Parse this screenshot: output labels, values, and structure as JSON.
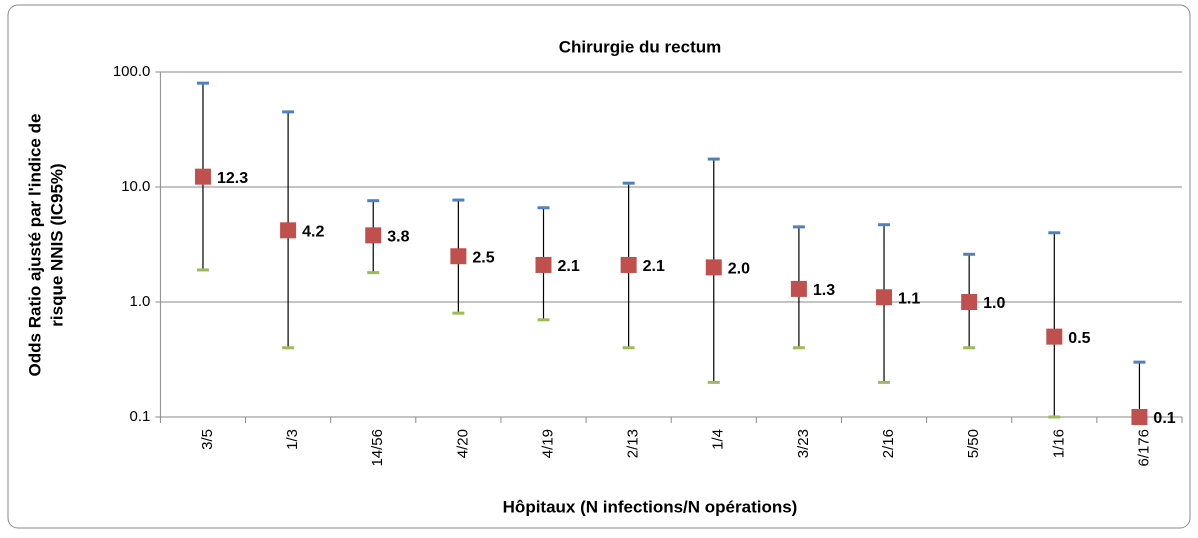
{
  "chart_data": {
    "type": "errorbar",
    "title": "Chirurgie du rectum",
    "x_label": "Hôpitaux (N infections/N opérations)",
    "y_label": [
      "Odds Ratio ajusté par l'indice de",
      "risque NNIS (IC95%)"
    ],
    "categories": [
      "3/5",
      "1/3",
      "14/56",
      "4/20",
      "4/19",
      "2/13",
      "1/4",
      "3/23",
      "2/16",
      "5/50",
      "1/16",
      "6/176"
    ],
    "values": [
      12.3,
      4.2,
      3.8,
      2.5,
      2.1,
      2.1,
      2.0,
      1.3,
      1.1,
      1.0,
      0.5,
      0.1
    ],
    "value_labels": [
      "12.3",
      "4.2",
      "3.8",
      "2.5",
      "2.1",
      "2.1",
      "2.0",
      "1.3",
      "1.1",
      "1.0",
      "0.5",
      "0.1"
    ],
    "lower": [
      1.9,
      0.4,
      1.8,
      0.8,
      0.7,
      0.4,
      0.2,
      0.4,
      0.2,
      0.4,
      0.1,
      0.1
    ],
    "upper": [
      80,
      45,
      7.6,
      7.7,
      6.6,
      10.8,
      17.5,
      4.5,
      4.7,
      2.6,
      4.0,
      0.3
    ],
    "color": "#c0504d",
    "lower_color": "#9bbb59",
    "upper_color": "#4f81bd",
    "log_scale": true,
    "grid": true,
    "ylim": [
      0.1,
      100
    ],
    "yticks": [
      0.1,
      {
        "value": 1,
        "label": "1.0"
      },
      {
        "value": 10,
        "label": "10.0"
      },
      {
        "value": 100,
        "label": "100.0"
      }
    ]
  }
}
